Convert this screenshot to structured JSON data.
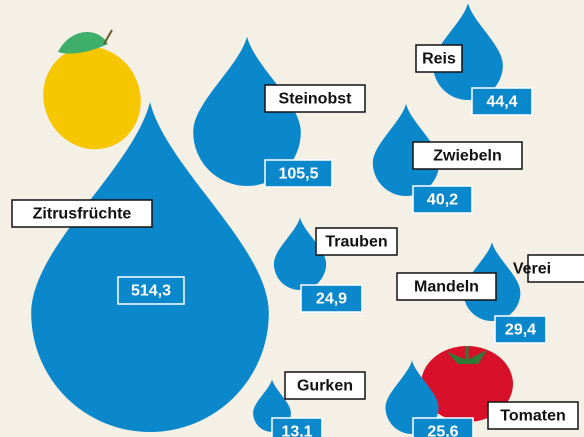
{
  "chart_data": {
    "type": "drops",
    "categories": [
      "Zitrusfrüchte",
      "Steinobst",
      "Reis",
      "Zwiebeln",
      "Trauben",
      "Mandeln",
      "Gurken",
      "Tomaten"
    ],
    "values": [
      514.3,
      105.5,
      44.4,
      40.2,
      24.9,
      29.4,
      13.1,
      25.6
    ],
    "value_labels": [
      "514,3",
      "105,5",
      "44,4",
      "40,2",
      "24,9",
      "29,4",
      "13,1",
      "25,6"
    ],
    "color": "#0b87cb",
    "annotations": [
      "Verei"
    ]
  }
}
